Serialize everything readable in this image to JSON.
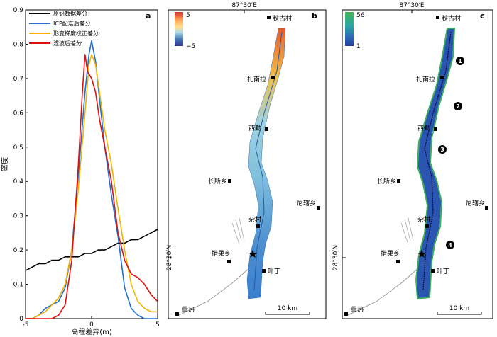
{
  "chart_data": {
    "type": "line",
    "panel_label": "a",
    "ylabel": "密度",
    "xlabel": "高程差异(m)",
    "xlim": [
      -5,
      5
    ],
    "ylim": [
      0,
      0.9
    ],
    "xticks": [
      "-5",
      "0",
      "5"
    ],
    "yticks": [
      "0",
      "0.1",
      "0.2",
      "0.3",
      "0.4",
      "0.5",
      "0.6",
      "0.7",
      "0.8",
      "0.9"
    ],
    "legend_position": "top-left",
    "series": [
      {
        "name": "原始数据差分",
        "color": "#000000",
        "x": [
          -5,
          -4.5,
          -4,
          -3.5,
          -3,
          -2.5,
          -2,
          -1.5,
          -1,
          -0.5,
          0,
          0.5,
          1,
          1.5,
          2,
          2.5,
          3,
          3.5,
          4,
          4.5,
          5
        ],
        "y": [
          0.14,
          0.15,
          0.16,
          0.16,
          0.17,
          0.17,
          0.18,
          0.18,
          0.18,
          0.19,
          0.19,
          0.2,
          0.2,
          0.21,
          0.22,
          0.22,
          0.23,
          0.23,
          0.24,
          0.25,
          0.26
        ]
      },
      {
        "name": "ICP配准后差分",
        "color": "#1f6fd1",
        "x": [
          -5,
          -4.5,
          -4,
          -3.5,
          -3,
          -2.5,
          -2,
          -1.5,
          -1,
          -0.5,
          -0.2,
          0,
          0.3,
          0.6,
          1,
          1.5,
          2,
          2.5,
          3,
          3.5,
          4,
          5
        ],
        "y": [
          0.0,
          0.0,
          0.01,
          0.03,
          0.04,
          0.05,
          0.09,
          0.2,
          0.42,
          0.66,
          0.77,
          0.81,
          0.75,
          0.64,
          0.5,
          0.36,
          0.24,
          0.09,
          0.03,
          0.01,
          0.0,
          0.0
        ]
      },
      {
        "name": "形变梯度校正差分",
        "color": "#f0b400",
        "x": [
          -5,
          -4.5,
          -4,
          -3.5,
          -3,
          -2.5,
          -2,
          -1.5,
          -1,
          -0.5,
          -0.2,
          0,
          0.3,
          0.6,
          1,
          1.5,
          2,
          2.5,
          3,
          3.5,
          4,
          4.5,
          5
        ],
        "y": [
          0.0,
          0.0,
          0.01,
          0.02,
          0.04,
          0.06,
          0.1,
          0.2,
          0.38,
          0.6,
          0.74,
          0.77,
          0.74,
          0.66,
          0.55,
          0.45,
          0.32,
          0.2,
          0.1,
          0.05,
          0.03,
          0.02,
          0.02
        ]
      },
      {
        "name": "滤波后差分",
        "color": "#e01010",
        "x": [
          -5,
          -4.5,
          -4,
          -3.5,
          -3,
          -2.5,
          -2,
          -1.5,
          -1,
          -0.7,
          -0.5,
          -0.3,
          0,
          0.3,
          0.6,
          1,
          1.5,
          2,
          2.5,
          3,
          3.5,
          4,
          4.5,
          5
        ],
        "y": [
          0.0,
          0.0,
          0.0,
          0.0,
          0.0,
          0.01,
          0.04,
          0.17,
          0.45,
          0.66,
          0.77,
          0.72,
          0.7,
          0.66,
          0.58,
          0.5,
          0.4,
          0.25,
          0.17,
          0.13,
          0.12,
          0.1,
          0.07,
          0.05
        ]
      }
    ]
  },
  "map_b": {
    "panel_label": "b",
    "lon_label": "87°30′E",
    "lat_label": "28°30′N",
    "colorbar_max": "5",
    "colorbar_min": "−5",
    "scale_label": "10 km",
    "places": {
      "qiugu": "秋古村",
      "zhanan": "扎南拉",
      "xiqin": "西勤",
      "changsuo": "长所乡",
      "nixiu": "尼辖乡",
      "zacun": "杂村",
      "cuoguo": "措果乡",
      "yeding": "叶丁",
      "dongre": "董热"
    }
  },
  "map_c": {
    "panel_label": "c",
    "lon_label": "87°30′E",
    "lat_label": "28°30′N",
    "colorbar_max": "56",
    "colorbar_min": "1",
    "scale_label": "10 km",
    "markers": [
      "1",
      "2",
      "3",
      "4"
    ],
    "places": {
      "qiugu": "秋古村",
      "zhanan": "扎南拉",
      "xiqin": "西勤",
      "changsuo": "长所乡",
      "nixiu": "尼辖乡",
      "zacun": "杂村",
      "cuoguo": "措果乡",
      "yeding": "叶丁",
      "dongre": "董热"
    }
  }
}
